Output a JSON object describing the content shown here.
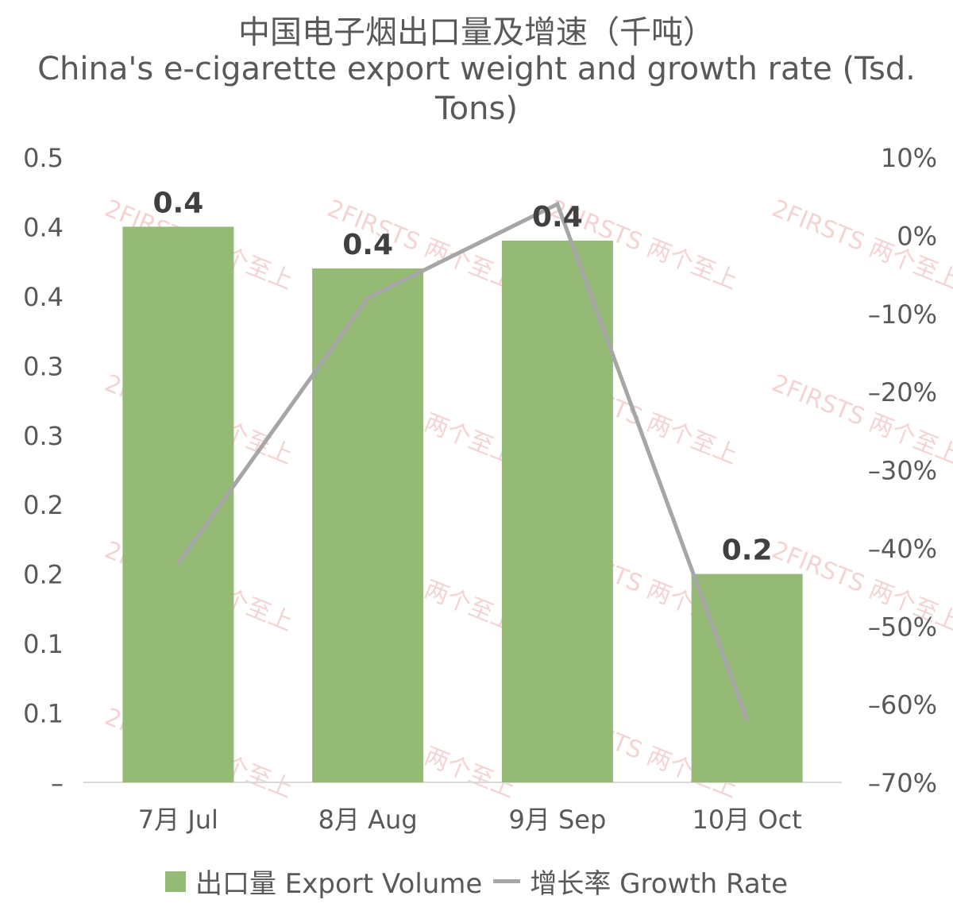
{
  "title": {
    "zh": "中国电子烟出口量及增速（千吨）",
    "en": "China's e-cigarette export weight and growth rate (Tsd. Tons)"
  },
  "watermark": "2FIRSTS 两个至上",
  "colors": {
    "bar": "#94BA76",
    "line": "#A6A6A6",
    "text": "#595959",
    "label": "#404040",
    "axis": "#D9D9D9",
    "watermark": "#E8A0A0"
  },
  "legend": {
    "bar_label": "出口量 Export Volume",
    "line_label": "增长率 Growth Rate"
  },
  "chart_data": {
    "type": "bar",
    "categories": [
      "7月 Jul",
      "8月 Aug",
      "9月 Sep",
      "10月 Oct"
    ],
    "series": [
      {
        "name": "出口量 Export Volume",
        "type": "bar",
        "axis": "left",
        "values": [
          0.4,
          0.37,
          0.39,
          0.15
        ],
        "data_labels": [
          "0.4",
          "0.4",
          "0.4",
          "0.2"
        ]
      },
      {
        "name": "增长率 Growth Rate",
        "type": "line",
        "axis": "right",
        "values": [
          -42,
          -8,
          4,
          -62
        ]
      }
    ],
    "y_left": {
      "ylim": [
        0,
        0.45
      ],
      "ticks": [
        0,
        0.05,
        0.1,
        0.15,
        0.2,
        0.25,
        0.3,
        0.35,
        0.4,
        0.45
      ],
      "tick_labels": [
        "–",
        "0.1",
        "0.1",
        "0.2",
        "0.2",
        "0.3",
        "0.3",
        "0.4",
        "0.4",
        "0.5"
      ]
    },
    "y_right": {
      "ylim": [
        -70,
        10
      ],
      "ticks": [
        -70,
        -60,
        -50,
        -40,
        -30,
        -20,
        -10,
        0,
        10
      ],
      "tick_labels": [
        "–70%",
        "–60%",
        "–50%",
        "–40%",
        "–30%",
        "–20%",
        "–10%",
        "0%",
        "10%"
      ]
    },
    "grid": false,
    "legend_position": "bottom"
  }
}
